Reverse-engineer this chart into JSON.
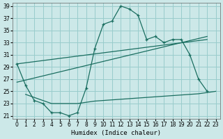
{
  "bg_color": "#cce8e8",
  "grid_color": "#99cccc",
  "line_color": "#1a6e60",
  "xlabel": "Humidex (Indice chaleur)",
  "xlim": [
    -0.5,
    23.5
  ],
  "ylim": [
    20.5,
    39.5
  ],
  "xticks": [
    0,
    1,
    2,
    3,
    4,
    5,
    6,
    7,
    8,
    9,
    10,
    11,
    12,
    13,
    14,
    15,
    16,
    17,
    18,
    19,
    20,
    21,
    22,
    23
  ],
  "yticks": [
    21,
    23,
    25,
    27,
    29,
    31,
    33,
    35,
    37,
    39
  ],
  "curve_main_x": [
    0,
    1,
    2,
    3,
    4,
    5,
    6,
    7,
    8,
    9,
    10,
    11,
    12,
    13,
    14,
    15,
    16,
    17,
    18,
    19,
    20,
    21,
    22
  ],
  "curve_main_y": [
    29.5,
    26.0,
    23.5,
    23.0,
    21.5,
    21.5,
    21.0,
    21.5,
    25.5,
    32.0,
    36.0,
    36.5,
    39.0,
    38.5,
    37.5,
    33.5,
    34.0,
    33.0,
    33.5,
    33.5,
    31.0,
    27.0,
    25.0
  ],
  "curve_flat_x": [
    1,
    2,
    3,
    4,
    5,
    6,
    7,
    8,
    9,
    10,
    11,
    12,
    13,
    14,
    15,
    16,
    17,
    18,
    19,
    20,
    21,
    22,
    23
  ],
  "curve_flat_y": [
    24.5,
    24.0,
    23.5,
    23.0,
    23.0,
    23.0,
    23.0,
    23.2,
    23.4,
    23.5,
    23.6,
    23.7,
    23.8,
    23.9,
    24.0,
    24.1,
    24.2,
    24.3,
    24.4,
    24.5,
    24.6,
    24.8,
    25.0
  ],
  "trend1_x": [
    0,
    22
  ],
  "trend1_y": [
    29.5,
    33.5
  ],
  "trend2_x": [
    0,
    22
  ],
  "trend2_y": [
    26.5,
    34.0
  ]
}
